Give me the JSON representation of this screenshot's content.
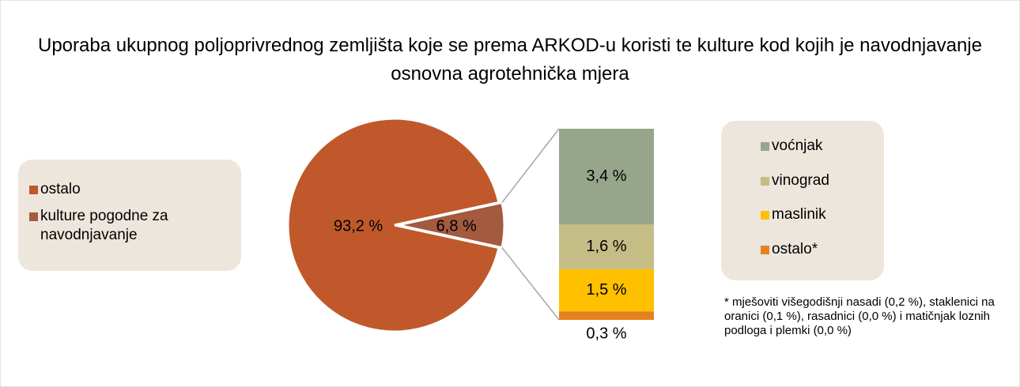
{
  "chart_data": [
    {
      "type": "pie",
      "title": "Uporaba ukupnog poljoprivrednog zemljišta koje se prema ARKOD-u koristi te kulture kod kojih je navodnjavanje osnovna agrotehnička mjera",
      "categories": [
        "ostalo",
        "kulture pogodne za navodnjavanje"
      ],
      "values": [
        93.2,
        6.8
      ],
      "value_labels": [
        "93,2 %",
        "6,8 %"
      ],
      "colors": [
        "#c0582b",
        "#a35a3e"
      ]
    },
    {
      "type": "stacked-bar",
      "categories": [
        "voćnjak",
        "vinograd",
        "maslinik",
        "ostalo*"
      ],
      "values": [
        3.4,
        1.6,
        1.5,
        0.3
      ],
      "value_labels": [
        "3,4 %",
        "1,6 %",
        "1,5 %",
        "0,3 %"
      ],
      "colors": [
        "#97a58a",
        "#c4bd85",
        "#ffc000",
        "#e6821e"
      ],
      "note": "* mješoviti višegodišnji nasadi (0,2 %), staklenici na oranici (0,1 %), rasadnici (0,0 %) i matičnjak loznih podloga i plemki (0,0 %)"
    }
  ]
}
